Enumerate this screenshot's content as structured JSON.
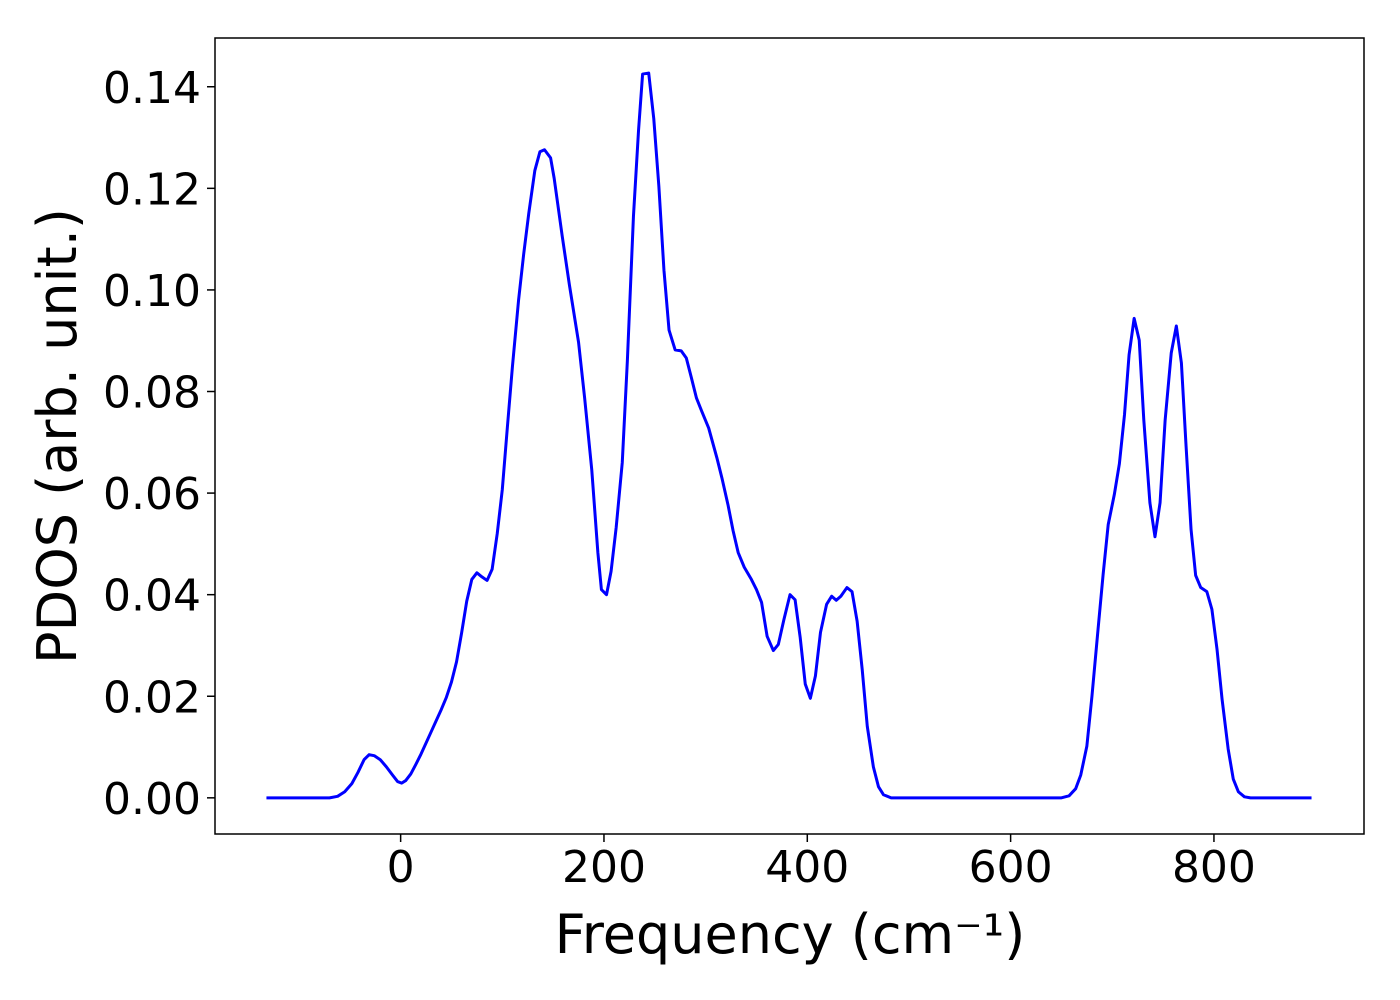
{
  "chart_data": {
    "type": "line",
    "xlabel": "Frequency (cm⁻¹)",
    "ylabel": "PDOS (arb. unit.)",
    "xlim": [
      -182.6,
      947.6
    ],
    "ylim": [
      -0.00712,
      0.1496
    ],
    "xticks": [
      0,
      200,
      400,
      600,
      800
    ],
    "yticks": [
      {
        "value": 0,
        "label": "0.00"
      },
      {
        "value": 0.02,
        "label": "0.02"
      },
      {
        "value": 0.04,
        "label": "0.04"
      },
      {
        "value": 0.06,
        "label": "0.06"
      },
      {
        "value": 0.08,
        "label": "0.08"
      },
      {
        "value": 0.1,
        "label": "0.10"
      },
      {
        "value": 0.12,
        "label": "0.12"
      },
      {
        "value": 0.14,
        "label": "0.14"
      }
    ],
    "grid": false,
    "series": [
      {
        "color": "#0000ff",
        "x": [
          -132,
          -70,
          -62,
          -55,
          -48,
          -42,
          -36,
          -31,
          -26,
          -20,
          -14,
          -8,
          -3,
          1,
          5,
          10,
          15,
          20,
          25,
          30,
          35,
          40,
          45,
          50,
          55,
          60,
          65,
          70,
          75,
          80,
          85,
          90,
          95,
          100,
          105,
          110,
          116,
          121,
          126,
          132,
          137,
          141.5,
          147.5,
          151,
          159,
          166,
          175,
          181,
          188,
          194,
          197.5,
          202.5,
          207,
          212,
          218,
          223,
          229,
          234,
          238,
          244,
          249,
          254,
          259,
          264,
          270,
          276,
          281,
          286,
          291,
          296,
          303,
          311,
          316,
          322,
          327,
          332,
          338,
          345,
          350,
          355,
          360.5,
          366.6,
          371.5,
          377,
          383,
          388,
          393,
          398,
          403,
          408,
          413,
          419,
          424,
          428.5,
          433,
          439,
          444,
          449,
          454,
          459,
          465,
          470,
          475,
          482.5,
          650,
          657.5,
          664,
          669,
          675,
          680,
          686,
          691,
          696,
          702,
          707,
          712,
          716.5,
          721.5,
          726.5,
          731,
          737,
          742,
          747,
          752,
          758,
          763,
          768,
          772.5,
          777.5,
          782,
          787,
          793,
          798,
          803,
          808,
          814,
          819,
          824,
          830,
          836,
          896
        ],
        "values": [
          0,
          0,
          0.0003,
          0.0012,
          0.0028,
          0.005,
          0.0075,
          0.0085,
          0.0083,
          0.0075,
          0.0061,
          0.0045,
          0.0032,
          0.0029,
          0.0034,
          0.0047,
          0.0066,
          0.0086,
          0.0108,
          0.013,
          0.0152,
          0.0174,
          0.0198,
          0.0228,
          0.0268,
          0.0325,
          0.0387,
          0.043,
          0.0443,
          0.0435,
          0.0428,
          0.045,
          0.052,
          0.0607,
          0.073,
          0.085,
          0.098,
          0.107,
          0.115,
          0.1235,
          0.1272,
          0.1276,
          0.126,
          0.122,
          0.1105,
          0.101,
          0.0897,
          0.0787,
          0.0646,
          0.0483,
          0.041,
          0.04,
          0.0446,
          0.0532,
          0.066,
          0.086,
          0.1145,
          0.1314,
          0.1425,
          0.1427,
          0.1337,
          0.1204,
          0.1039,
          0.0921,
          0.0882,
          0.088,
          0.0866,
          0.0827,
          0.0787,
          0.0762,
          0.0728,
          0.067,
          0.063,
          0.0577,
          0.0526,
          0.0483,
          0.0454,
          0.043,
          0.041,
          0.0385,
          0.0318,
          0.029,
          0.0302,
          0.0351,
          0.04,
          0.039,
          0.0316,
          0.0224,
          0.0196,
          0.024,
          0.0326,
          0.0381,
          0.0397,
          0.0389,
          0.0397,
          0.0414,
          0.0406,
          0.0348,
          0.0253,
          0.0141,
          0.0061,
          0.0022,
          0.0006,
          0,
          0,
          0.0004,
          0.0018,
          0.0045,
          0.0102,
          0.02,
          0.0332,
          0.044,
          0.0538,
          0.0597,
          0.0658,
          0.0754,
          0.0872,
          0.0944,
          0.0901,
          0.0744,
          0.0581,
          0.0514,
          0.0581,
          0.0744,
          0.0876,
          0.0929,
          0.0856,
          0.0695,
          0.0528,
          0.0438,
          0.0414,
          0.0406,
          0.0371,
          0.0293,
          0.0194,
          0.0096,
          0.0037,
          0.0012,
          0.0002,
          0,
          0
        ]
      }
    ]
  }
}
